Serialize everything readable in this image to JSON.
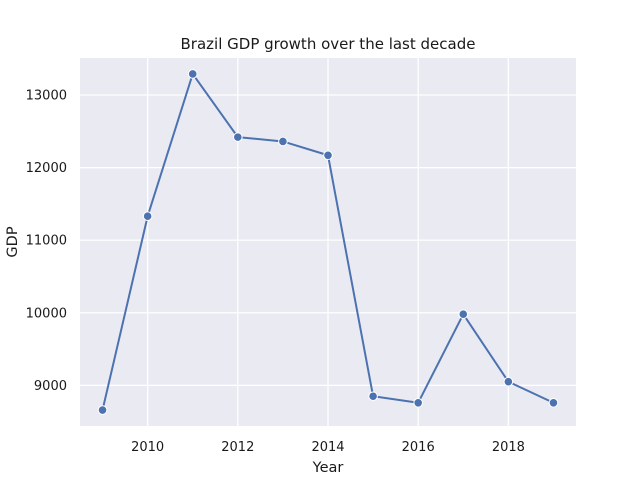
{
  "chart_data": {
    "type": "line",
    "title": "Brazil GDP growth over the last decade",
    "xlabel": "Year",
    "ylabel": "GDP",
    "x": [
      2009,
      2010,
      2011,
      2012,
      2013,
      2014,
      2015,
      2016,
      2017,
      2018,
      2019
    ],
    "series": [
      {
        "values": [
          8660,
          11330,
          13290,
          12420,
          12360,
          12170,
          8850,
          8760,
          9980,
          9050,
          8760
        ]
      }
    ],
    "xlim": [
      2008.5,
      2019.5
    ],
    "ylim": [
      8440,
      13510
    ],
    "xticks": [
      2010,
      2012,
      2014,
      2016,
      2018
    ],
    "yticks": [
      9000,
      10000,
      11000,
      12000,
      13000
    ],
    "grid": true,
    "legend": "none",
    "colors": {
      "background": "#eaeaf2",
      "grid": "#ffffff",
      "line": "#4c72b0",
      "marker": "#4c72b0",
      "marker_edge": "#ffffff"
    }
  }
}
